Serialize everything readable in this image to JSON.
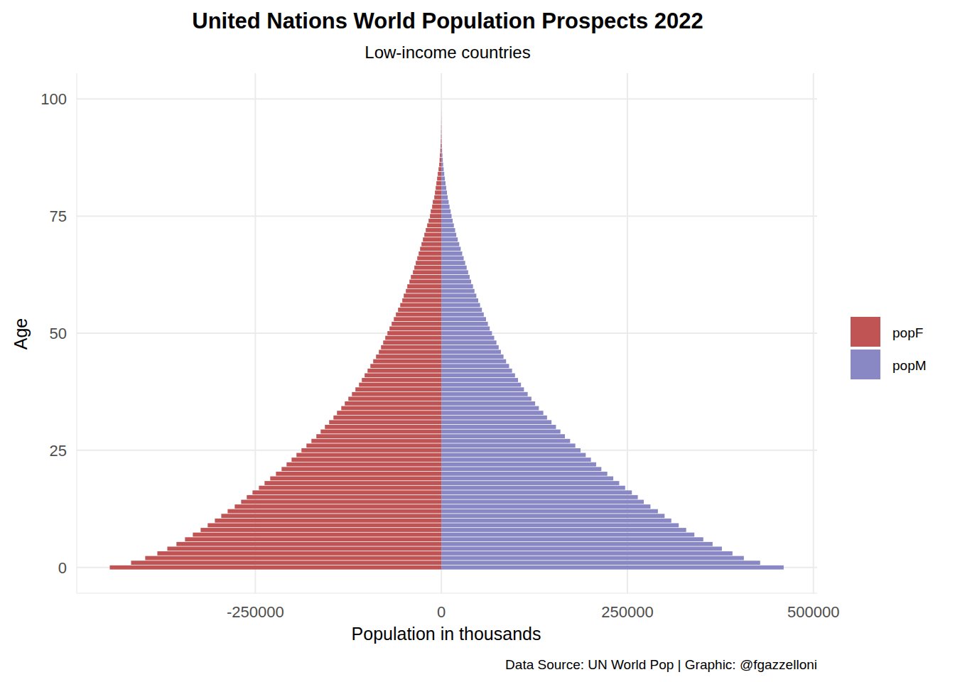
{
  "chart_data": {
    "type": "bar",
    "orientation": "horizontal",
    "title": "United Nations World Population Prospects 2022",
    "subtitle": "Low-income countries",
    "x_label": "Population in thousands",
    "y_label": "Age",
    "caption": "Data Source: UN World Pop | Graphic: @fgazzelloni",
    "categories": [
      0,
      1,
      2,
      3,
      4,
      5,
      6,
      7,
      8,
      9,
      10,
      11,
      12,
      13,
      14,
      15,
      16,
      17,
      18,
      19,
      20,
      21,
      22,
      23,
      24,
      25,
      26,
      27,
      28,
      29,
      30,
      31,
      32,
      33,
      34,
      35,
      36,
      37,
      38,
      39,
      40,
      41,
      42,
      43,
      44,
      45,
      46,
      47,
      48,
      49,
      50,
      51,
      52,
      53,
      54,
      55,
      56,
      57,
      58,
      59,
      60,
      61,
      62,
      63,
      64,
      65,
      66,
      67,
      68,
      69,
      70,
      71,
      72,
      73,
      74,
      75,
      76,
      77,
      78,
      79,
      80,
      81,
      82,
      83,
      84,
      85,
      86,
      87,
      88,
      89,
      90,
      91,
      92,
      93,
      94,
      95,
      96,
      97,
      98,
      99,
      100
    ],
    "series": [
      {
        "name": "popF",
        "color": "#c05454",
        "values": [
          -445600,
          -417000,
          -398000,
          -381700,
          -368300,
          -356000,
          -344500,
          -334000,
          -323500,
          -314000,
          -304400,
          -295800,
          -287200,
          -277700,
          -269100,
          -261500,
          -253800,
          -245200,
          -237600,
          -230000,
          -222300,
          -214700,
          -208000,
          -201300,
          -194700,
          -188000,
          -181300,
          -174600,
          -168000,
          -162200,
          -156500,
          -150800,
          -145000,
          -140300,
          -134500,
          -129800,
          -125000,
          -120200,
          -115500,
          -110700,
          -106900,
          -103100,
          -99200,
          -95400,
          -91600,
          -87800,
          -84000,
          -81100,
          -78200,
          -75400,
          -72500,
          -69700,
          -66800,
          -63900,
          -61100,
          -58200,
          -55300,
          -52500,
          -50600,
          -47700,
          -45800,
          -42900,
          -41000,
          -38200,
          -36300,
          -34400,
          -32400,
          -30500,
          -28600,
          -26700,
          -24800,
          -22900,
          -21000,
          -19100,
          -17200,
          -15300,
          -14300,
          -12400,
          -11500,
          -9500,
          -8600,
          -7600,
          -6700,
          -5700,
          -4800,
          -3800,
          -2900,
          -2400,
          -1900,
          -1400,
          -1000,
          -700,
          -500,
          -400,
          -300,
          -200,
          -130,
          -80,
          -50,
          -30,
          -20
        ]
      },
      {
        "name": "popM",
        "color": "#8a88c4",
        "values": [
          460000,
          428400,
          406500,
          391200,
          377000,
          364500,
          352000,
          340000,
          329000,
          319000,
          309000,
          300000,
          291000,
          281000,
          272000,
          264000,
          256000,
          247000,
          239000,
          231000,
          223000,
          215000,
          208000,
          201000,
          194000,
          187000,
          180000,
          173000,
          166000,
          160000,
          154000,
          148000,
          142000,
          137000,
          131000,
          126000,
          121000,
          116000,
          111000,
          107000,
          103000,
          99000,
          95000,
          91000,
          87000,
          83500,
          80000,
          77000,
          74000,
          71000,
          68000,
          65000,
          62500,
          60000,
          57000,
          54500,
          52000,
          49500,
          47000,
          44500,
          42500,
          40000,
          38000,
          36000,
          34000,
          32000,
          30000,
          28000,
          26000,
          24000,
          22000,
          20000,
          18500,
          16800,
          15200,
          13700,
          12500,
          11000,
          9800,
          8500,
          7500,
          6500,
          5600,
          4700,
          3900,
          3100,
          2400,
          1900,
          1400,
          1000,
          700,
          500,
          350,
          250,
          170,
          110,
          70,
          45,
          28,
          18,
          12
        ]
      }
    ],
    "xlim": [
      -490000,
      505000
    ],
    "xticks": [
      -250000,
      0,
      250000,
      500000
    ],
    "ylim": [
      -5.5,
      105.5
    ],
    "yticks": [
      0,
      25,
      50,
      75,
      100
    ],
    "grid": true,
    "legend": "right"
  }
}
